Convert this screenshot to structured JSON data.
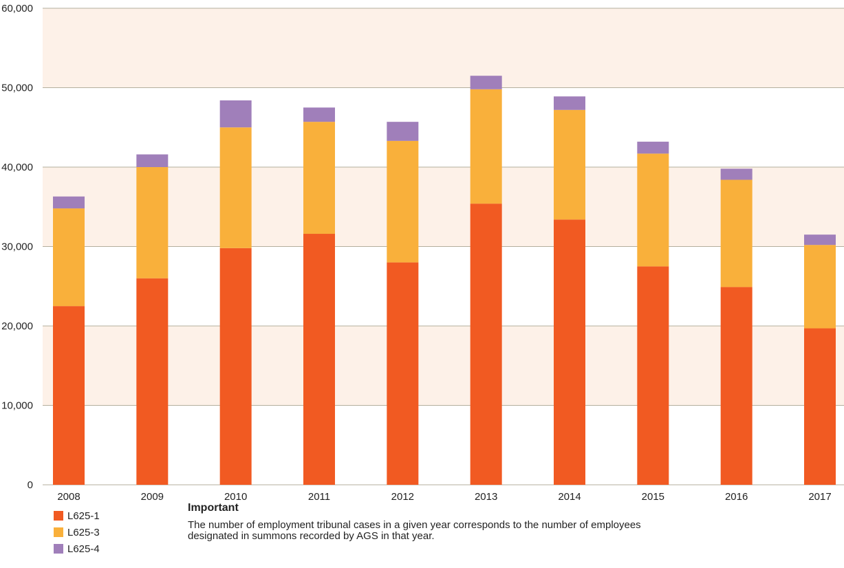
{
  "chart_data": {
    "type": "bar",
    "stacked": true,
    "categories": [
      "2008",
      "2009",
      "2010",
      "2011",
      "2012",
      "2013",
      "2014",
      "2015",
      "2016",
      "2017"
    ],
    "series": [
      {
        "name": "L625-1",
        "color": "#f15a22",
        "values": [
          22500,
          26000,
          29800,
          31600,
          28000,
          35400,
          33400,
          27500,
          24900,
          19700
        ]
      },
      {
        "name": "L625-3",
        "color": "#f9b03b",
        "values": [
          12300,
          14000,
          15200,
          14100,
          15300,
          14400,
          13800,
          14200,
          13500,
          10500
        ]
      },
      {
        "name": "L625-4",
        "color": "#a07fba",
        "values": [
          1500,
          1600,
          3400,
          1800,
          2400,
          1700,
          1700,
          1500,
          1400,
          1300
        ]
      }
    ],
    "ylim": [
      0,
      60000
    ],
    "yticks": [
      0,
      10000,
      20000,
      30000,
      40000,
      50000,
      60000
    ],
    "ytick_labels": [
      "0",
      "10,000",
      "20,000",
      "30,000",
      "40,000",
      "50,000",
      "60,000"
    ],
    "grid": true,
    "band_color": "#fdf1e8",
    "legend_placement": "bottom-left"
  },
  "note": {
    "title": "Important",
    "body_line1": "The number of employment tribunal cases in a given year corresponds to the number of employees",
    "body_line2": "designated in summons recorded by AGS in that year."
  }
}
